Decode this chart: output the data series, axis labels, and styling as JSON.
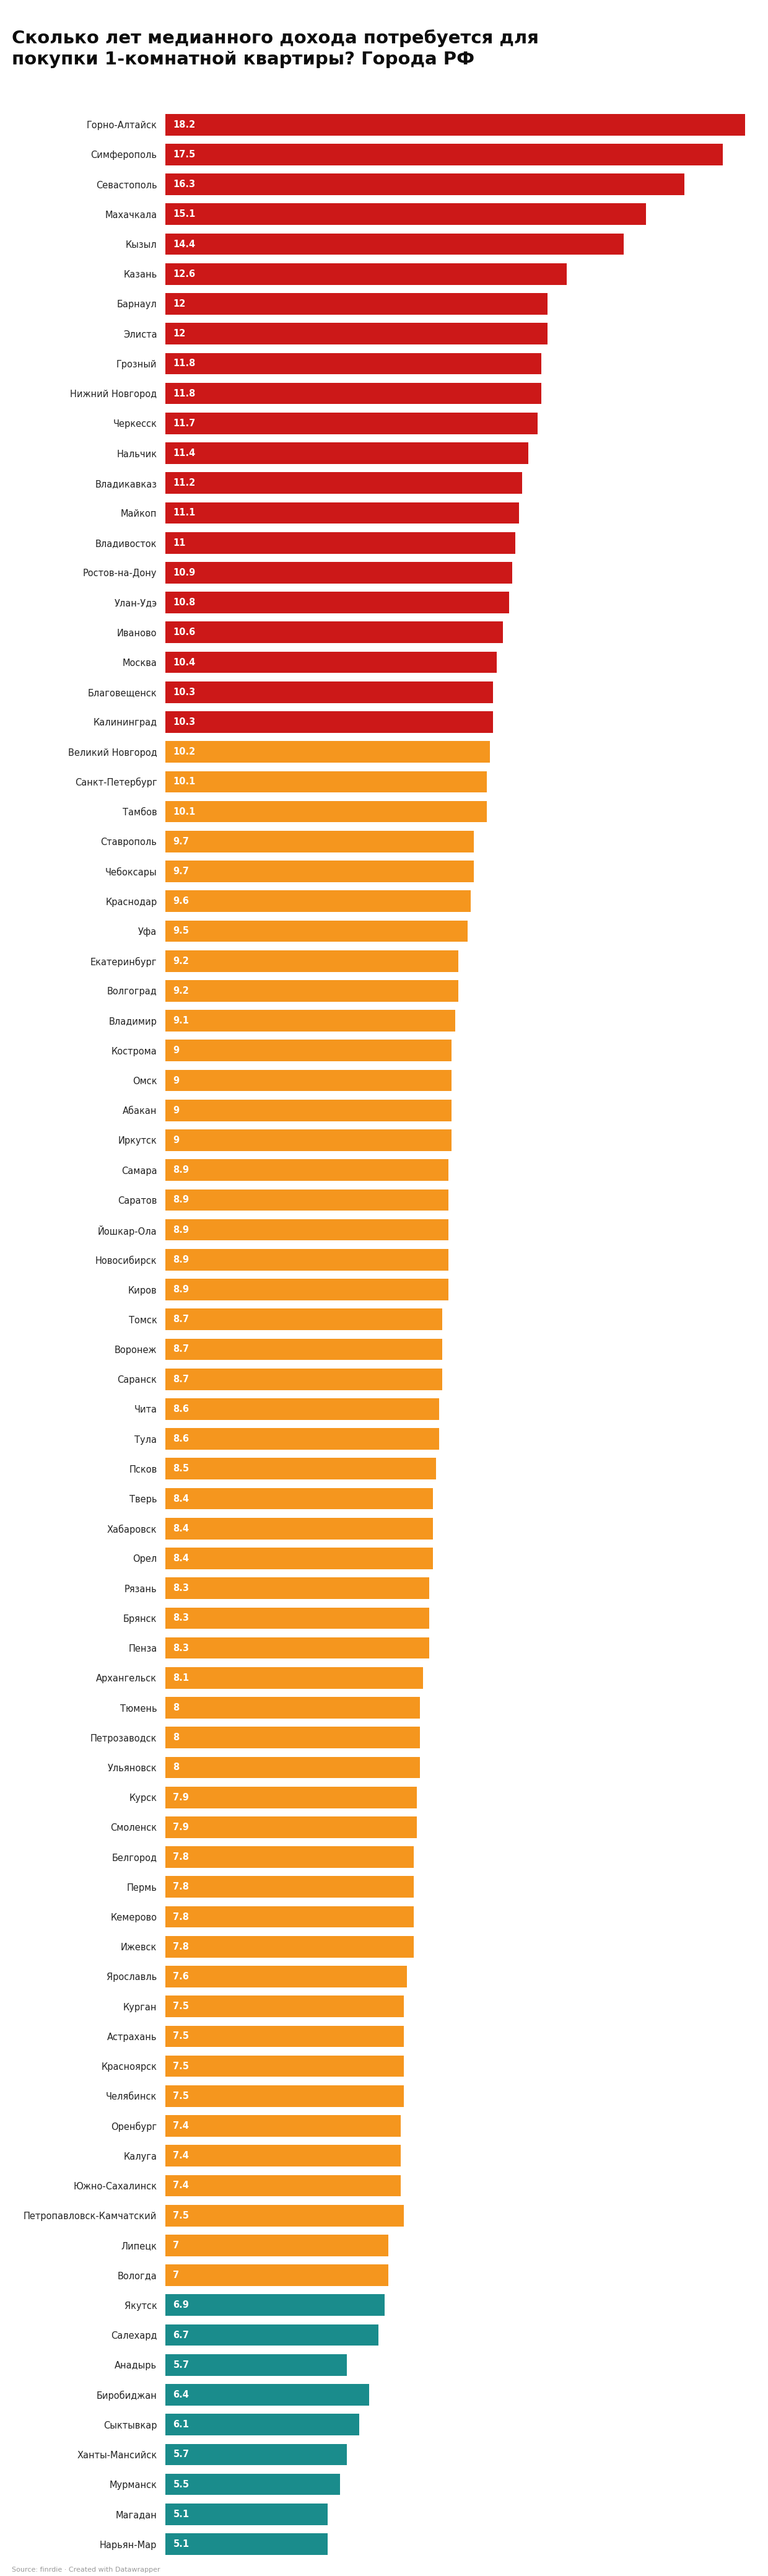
{
  "title": "Сколько лет медианного дохода потребуется для\nпокупки 1-комнатной квартиры? Города РФ",
  "source": "Source: finrdie · Created with Datawrapper",
  "categories": [
    "Горно-Алтайск",
    "Симферополь",
    "Севастополь",
    "Махачкала",
    "Кызыл",
    "Казань",
    "Барнаул",
    "Элиста",
    "Грозный",
    "Нижний Новгород",
    "Черкесск",
    "Нальчик",
    "Владикавказ",
    "Майкоп",
    "Владивосток",
    "Ростов-на-Дону",
    "Улан-Удэ",
    "Иваново",
    "Москва",
    "Благовещенск",
    "Калининград",
    "Великий Новгород",
    "Санкт-Петербург",
    "Тамбов",
    "Ставрополь",
    "Чебоксары",
    "Краснодар",
    "Уфа",
    "Екатеринбург",
    "Волгоград",
    "Владимир",
    "Кострома",
    "Омск",
    "Абакан",
    "Иркутск",
    "Самара",
    "Саратов",
    "Йошкар-Ола",
    "Новосибирск",
    "Киров",
    "Томск",
    "Воронеж",
    "Саранск",
    "Чита",
    "Тула",
    "Псков",
    "Тверь",
    "Хабаровск",
    "Орел",
    "Рязань",
    "Брянск",
    "Пенза",
    "Архангельск",
    "Тюмень",
    "Петрозаводск",
    "Ульяновск",
    "Курск",
    "Смоленск",
    "Белгород",
    "Пермь",
    "Кемерово",
    "Ижевск",
    "Ярославль",
    "Курган",
    "Астрахань",
    "Красноярск",
    "Челябинск",
    "Оренбург",
    "Калуга",
    "Южно-Сахалинск",
    "Петропавловск-Камчатский",
    "Липецк",
    "Вологда",
    "Якутск",
    "Салехард",
    "Анадырь",
    "Биробиджан",
    "Сыктывкар",
    "Ханты-Мансийск",
    "Мурманск",
    "Магадан",
    "Нарьян-Мар"
  ],
  "values": [
    18.2,
    17.5,
    16.3,
    15.1,
    14.4,
    12.6,
    12.0,
    12.0,
    11.8,
    11.8,
    11.7,
    11.4,
    11.2,
    11.1,
    11.0,
    10.9,
    10.8,
    10.6,
    10.4,
    10.3,
    10.3,
    10.2,
    10.1,
    10.1,
    9.7,
    9.7,
    9.6,
    9.5,
    9.2,
    9.2,
    9.1,
    9.0,
    9.0,
    9.0,
    9.0,
    8.9,
    8.9,
    8.9,
    8.9,
    8.9,
    8.7,
    8.7,
    8.7,
    8.6,
    8.6,
    8.5,
    8.4,
    8.4,
    8.4,
    8.3,
    8.3,
    8.3,
    8.1,
    8.0,
    8.0,
    8.0,
    7.9,
    7.9,
    7.8,
    7.8,
    7.8,
    7.8,
    7.6,
    7.5,
    7.5,
    7.5,
    7.5,
    7.4,
    7.4,
    7.4,
    7.5,
    7.0,
    7.0,
    6.9,
    6.7,
    5.7,
    6.4,
    6.1,
    5.7,
    5.5,
    5.1,
    5.1
  ],
  "color_red": "#cc1818",
  "color_orange": "#f5961e",
  "color_teal": "#1a8c8c",
  "bg_color": "#ffffff",
  "bar_height": 0.72,
  "value_label_color": "#ffffff",
  "category_label_color": "#222222",
  "title_fontsize": 21,
  "label_fontsize": 10.5,
  "value_fontsize": 10.5,
  "source_fontsize": 8
}
